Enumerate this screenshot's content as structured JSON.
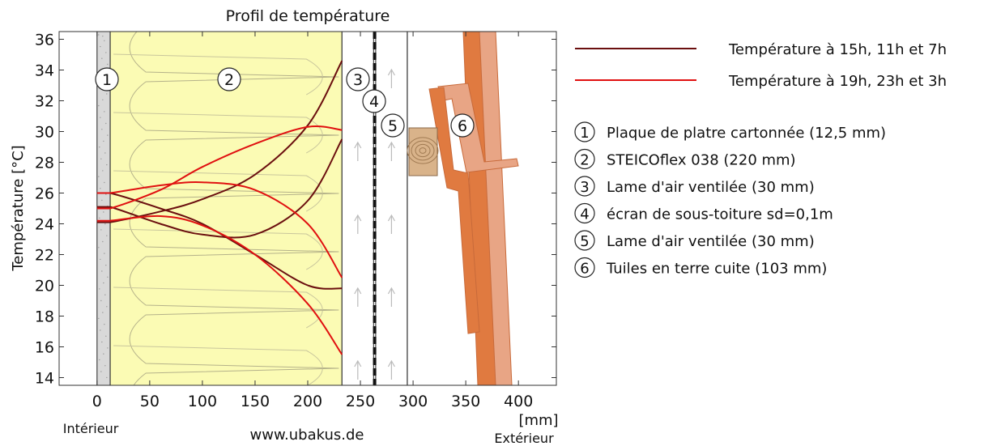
{
  "chart_data": {
    "type": "line",
    "title": "Profil de température",
    "ylabel": "Température [°C]",
    "x_unit_label": "[mm]",
    "x_left_caption": "Intérieur",
    "x_right_caption": "Extérieur",
    "footer": "www.ubakus.de",
    "xlim": [
      -36,
      436
    ],
    "ylim": [
      13.5,
      36.5
    ],
    "x_ticks": [
      0,
      50,
      100,
      150,
      200,
      250,
      300,
      350,
      400
    ],
    "y_ticks": [
      14,
      16,
      18,
      20,
      22,
      24,
      26,
      28,
      30,
      32,
      34,
      36
    ],
    "layers": [
      {
        "number": "1",
        "label": "Plaque de platre cartonnée (12,5 mm)",
        "x_start": 0,
        "x_end": 12.5,
        "color": "#d9d9d9"
      },
      {
        "number": "2",
        "label": "STEICOflex 038 (220 mm)",
        "x_start": 12.5,
        "x_end": 232.5,
        "color": "#fbfbb4"
      },
      {
        "number": "3",
        "label": "Lame d'air ventilée (30 mm)",
        "x_start": 232.5,
        "x_end": 262.5,
        "color": "#ffffff"
      },
      {
        "number": "4",
        "label": "écran de sous-toiture sd=0,1m",
        "x_start": 262.5,
        "x_end": 264.5,
        "color": "#111111"
      },
      {
        "number": "5",
        "label": "Lame d'air ventilée (30 mm)",
        "x_start": 264.5,
        "x_end": 294.5,
        "color": "#ffffff"
      },
      {
        "number": "6",
        "label": "Tuiles en terre cuite (103 mm)",
        "x_start": 294.5,
        "x_end": 397.5,
        "color": "#e07a40"
      }
    ],
    "legend": [
      {
        "name": "Température à 15h, 11h et 7h",
        "color": "#6b0f0f"
      },
      {
        "name": "Température à 19h, 23h et 3h",
        "color": "#e01010"
      }
    ],
    "series": [
      {
        "group": 0,
        "values": [
          [
            0,
            24.1
          ],
          [
            12.5,
            24.1
          ],
          [
            60,
            24.8
          ],
          [
            100,
            25.6
          ],
          [
            150,
            27.2
          ],
          [
            200,
            30.4
          ],
          [
            232.5,
            34.6
          ]
        ]
      },
      {
        "group": 0,
        "values": [
          [
            0,
            26.0
          ],
          [
            12.5,
            26.0
          ],
          [
            60,
            25.0
          ],
          [
            100,
            24.0
          ],
          [
            150,
            22.0
          ],
          [
            200,
            20.0
          ],
          [
            232.5,
            19.8
          ]
        ]
      },
      {
        "group": 0,
        "values": [
          [
            0,
            25.1
          ],
          [
            12.5,
            25.1
          ],
          [
            60,
            24.0
          ],
          [
            100,
            23.3
          ],
          [
            150,
            23.3
          ],
          [
            200,
            25.5
          ],
          [
            232.5,
            29.5
          ]
        ]
      },
      {
        "group": 1,
        "values": [
          [
            0,
            25.0
          ],
          [
            12.5,
            25.0
          ],
          [
            60,
            26.2
          ],
          [
            100,
            27.7
          ],
          [
            150,
            29.2
          ],
          [
            200,
            30.3
          ],
          [
            232.5,
            30.1
          ]
        ]
      },
      {
        "group": 1,
        "values": [
          [
            0,
            26.0
          ],
          [
            12.5,
            26.0
          ],
          [
            60,
            26.5
          ],
          [
            100,
            26.7
          ],
          [
            150,
            26.2
          ],
          [
            200,
            24.0
          ],
          [
            232.5,
            20.5
          ]
        ]
      },
      {
        "group": 1,
        "values": [
          [
            0,
            24.2
          ],
          [
            12.5,
            24.2
          ],
          [
            60,
            24.5
          ],
          [
            100,
            23.9
          ],
          [
            150,
            22.0
          ],
          [
            200,
            18.8
          ],
          [
            232.5,
            15.5
          ]
        ]
      }
    ]
  }
}
